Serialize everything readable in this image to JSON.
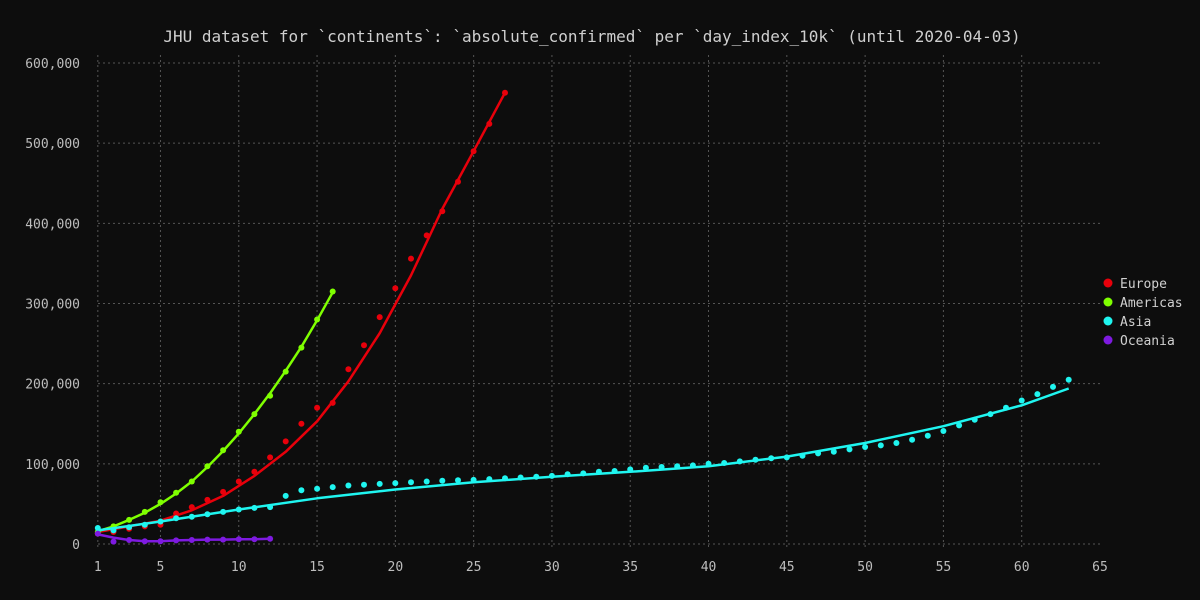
{
  "chart_data": {
    "type": "scatter",
    "title": "JHU dataset for `continents`: `absolute_confirmed` per `day_index_10k` (until 2020-04-03)",
    "xlabel": "",
    "ylabel": "",
    "xlim": [
      0.5,
      65
    ],
    "ylim": [
      -5000,
      610000
    ],
    "x_ticks": [
      1,
      5,
      10,
      15,
      20,
      25,
      30,
      35,
      40,
      45,
      50,
      55,
      60,
      65
    ],
    "x_tick_labels": [
      "1",
      "5",
      "10",
      "15",
      "20",
      "25",
      "30",
      "35",
      "40",
      "45",
      "50",
      "55",
      "60",
      "65"
    ],
    "y_ticks": [
      0,
      100000,
      200000,
      300000,
      400000,
      500000,
      600000
    ],
    "y_tick_labels": [
      "0",
      "100,000",
      "200,000",
      "300,000",
      "400,000",
      "500,000",
      "600,000"
    ],
    "grid": true,
    "legend_position": "right",
    "series": [
      {
        "name": "Europe",
        "color": "#e8000b",
        "points": [
          [
            1,
            13000
          ],
          [
            2,
            15000
          ],
          [
            3,
            19000
          ],
          [
            4,
            22000
          ],
          [
            5,
            24000
          ],
          [
            6,
            38000
          ],
          [
            7,
            46000
          ],
          [
            8,
            55000
          ],
          [
            9,
            65000
          ],
          [
            10,
            78000
          ],
          [
            11,
            90000
          ],
          [
            12,
            108000
          ],
          [
            13,
            128000
          ],
          [
            14,
            150000
          ],
          [
            15,
            170000
          ],
          [
            16,
            176000
          ],
          [
            17,
            218000
          ],
          [
            18,
            248000
          ],
          [
            19,
            283000
          ],
          [
            20,
            319000
          ],
          [
            21,
            356000
          ],
          [
            22,
            385000
          ],
          [
            23,
            415000
          ],
          [
            24,
            452000
          ],
          [
            25,
            490000
          ],
          [
            26,
            524000
          ],
          [
            27,
            563000
          ]
        ],
        "fit": [
          [
            1,
            15000
          ],
          [
            3,
            22000
          ],
          [
            5,
            29000
          ],
          [
            7,
            42000
          ],
          [
            9,
            60000
          ],
          [
            11,
            85000
          ],
          [
            13,
            115000
          ],
          [
            15,
            153000
          ],
          [
            17,
            203000
          ],
          [
            19,
            263000
          ],
          [
            21,
            335000
          ],
          [
            23,
            418000
          ],
          [
            25,
            490000
          ],
          [
            27,
            563000
          ]
        ]
      },
      {
        "name": "Americas",
        "color": "#7fff00",
        "points": [
          [
            1,
            15000
          ],
          [
            2,
            22000
          ],
          [
            3,
            30000
          ],
          [
            4,
            40000
          ],
          [
            5,
            52000
          ],
          [
            6,
            64000
          ],
          [
            7,
            78000
          ],
          [
            8,
            97000
          ],
          [
            9,
            117000
          ],
          [
            10,
            140000
          ],
          [
            11,
            162000
          ],
          [
            12,
            185000
          ],
          [
            13,
            215000
          ],
          [
            14,
            245000
          ],
          [
            15,
            280000
          ],
          [
            16,
            315000
          ]
        ],
        "fit": [
          [
            1,
            16000
          ],
          [
            2,
            22000
          ],
          [
            3,
            30000
          ],
          [
            4,
            39000
          ],
          [
            5,
            50000
          ],
          [
            6,
            63000
          ],
          [
            7,
            78000
          ],
          [
            8,
            96000
          ],
          [
            9,
            116000
          ],
          [
            10,
            138000
          ],
          [
            11,
            162000
          ],
          [
            12,
            188000
          ],
          [
            13,
            216000
          ],
          [
            14,
            246000
          ],
          [
            15,
            279000
          ],
          [
            16,
            314000
          ]
        ]
      },
      {
        "name": "Asia",
        "color": "#1ff5f0",
        "points": [
          [
            1,
            20000
          ],
          [
            2,
            17000
          ],
          [
            3,
            21000
          ],
          [
            4,
            24000
          ],
          [
            5,
            28000
          ],
          [
            6,
            32000
          ],
          [
            7,
            34000
          ],
          [
            8,
            37000
          ],
          [
            9,
            40000
          ],
          [
            10,
            43000
          ],
          [
            11,
            45000
          ],
          [
            12,
            46000
          ],
          [
            13,
            60000
          ],
          [
            14,
            67000
          ],
          [
            15,
            69000
          ],
          [
            16,
            71000
          ],
          [
            17,
            73000
          ],
          [
            18,
            74000
          ],
          [
            19,
            75000
          ],
          [
            20,
            76000
          ],
          [
            21,
            77000
          ],
          [
            22,
            78000
          ],
          [
            23,
            79000
          ],
          [
            24,
            79500
          ],
          [
            25,
            80000
          ],
          [
            26,
            81000
          ],
          [
            27,
            82000
          ],
          [
            28,
            83000
          ],
          [
            29,
            84000
          ],
          [
            30,
            85000
          ],
          [
            31,
            87000
          ],
          [
            32,
            88000
          ],
          [
            33,
            90000
          ],
          [
            34,
            91000
          ],
          [
            35,
            93000
          ],
          [
            36,
            95000
          ],
          [
            37,
            96000
          ],
          [
            38,
            97000
          ],
          [
            39,
            98000
          ],
          [
            40,
            100000
          ],
          [
            41,
            101000
          ],
          [
            42,
            103000
          ],
          [
            43,
            105000
          ],
          [
            44,
            107000
          ],
          [
            45,
            108000
          ],
          [
            46,
            110000
          ],
          [
            47,
            113000
          ],
          [
            48,
            115000
          ],
          [
            49,
            118000
          ],
          [
            50,
            121000
          ],
          [
            51,
            123000
          ],
          [
            52,
            126000
          ],
          [
            53,
            130000
          ],
          [
            54,
            135000
          ],
          [
            55,
            141000
          ],
          [
            56,
            148000
          ],
          [
            57,
            155000
          ],
          [
            58,
            162000
          ],
          [
            59,
            170000
          ],
          [
            60,
            179000
          ],
          [
            61,
            187000
          ],
          [
            62,
            196000
          ],
          [
            63,
            205000
          ]
        ],
        "fit": [
          [
            1,
            17000
          ],
          [
            5,
            28000
          ],
          [
            10,
            43000
          ],
          [
            15,
            57000
          ],
          [
            20,
            68000
          ],
          [
            25,
            77000
          ],
          [
            30,
            84000
          ],
          [
            35,
            90000
          ],
          [
            40,
            97000
          ],
          [
            45,
            109000
          ],
          [
            50,
            126000
          ],
          [
            55,
            147000
          ],
          [
            60,
            173000
          ],
          [
            63,
            194000
          ]
        ]
      },
      {
        "name": "Oceania",
        "color": "#7e1ae0",
        "points": [
          [
            1,
            13000
          ],
          [
            2,
            3000
          ],
          [
            3,
            5000
          ],
          [
            4,
            3500
          ],
          [
            5,
            3500
          ],
          [
            6,
            4500
          ],
          [
            7,
            5000
          ],
          [
            8,
            5500
          ],
          [
            9,
            5500
          ],
          [
            10,
            6000
          ],
          [
            11,
            6000
          ],
          [
            12,
            6500
          ]
        ],
        "fit": [
          [
            1,
            12000
          ],
          [
            2,
            8000
          ],
          [
            3,
            5000
          ],
          [
            4,
            3500
          ],
          [
            5,
            3500
          ],
          [
            6,
            4500
          ],
          [
            7,
            5000
          ],
          [
            8,
            5500
          ],
          [
            9,
            5500
          ],
          [
            10,
            6000
          ],
          [
            11,
            6000
          ],
          [
            12,
            6500
          ]
        ]
      }
    ]
  }
}
